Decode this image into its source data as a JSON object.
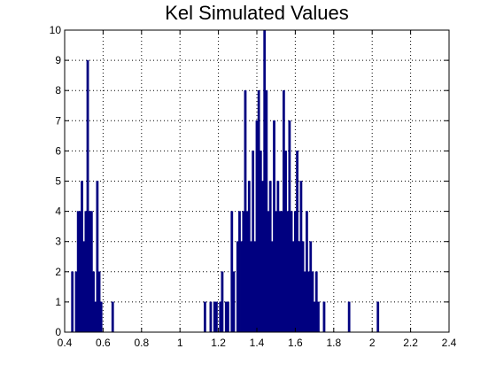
{
  "chart_data": {
    "type": "bar",
    "title": "Kel Simulated Values",
    "xlabel": "",
    "ylabel": "",
    "xlim": [
      0.4,
      2.4
    ],
    "ylim": [
      0,
      10
    ],
    "xticks": [
      0.4,
      0.6,
      0.8,
      1,
      1.2,
      1.4,
      1.6,
      1.8,
      2,
      2.2,
      2.4
    ],
    "xtick_labels": [
      "0.4",
      "0.6",
      "0.8",
      "1",
      "1.2",
      "1.4",
      "1.6",
      "1.8",
      "2",
      "2.2",
      "2.4"
    ],
    "yticks": [
      0,
      1,
      2,
      3,
      4,
      5,
      6,
      7,
      8,
      9,
      10
    ],
    "ytick_labels": [
      "0",
      "1",
      "2",
      "3",
      "4",
      "5",
      "6",
      "7",
      "8",
      "9",
      "10"
    ],
    "grid": true,
    "bar_color": "#000080",
    "bin_width": 0.01,
    "bins": [
      [
        0.44,
        2
      ],
      [
        0.46,
        2
      ],
      [
        0.47,
        4
      ],
      [
        0.48,
        4
      ],
      [
        0.49,
        5
      ],
      [
        0.5,
        3
      ],
      [
        0.51,
        4
      ],
      [
        0.52,
        9
      ],
      [
        0.53,
        4
      ],
      [
        0.54,
        4
      ],
      [
        0.55,
        2
      ],
      [
        0.56,
        1
      ],
      [
        0.57,
        5
      ],
      [
        0.58,
        2
      ],
      [
        0.59,
        1
      ],
      [
        0.65,
        1
      ],
      [
        1.13,
        1
      ],
      [
        1.16,
        1
      ],
      [
        1.18,
        1
      ],
      [
        1.19,
        1
      ],
      [
        1.21,
        1
      ],
      [
        1.22,
        2
      ],
      [
        1.24,
        1
      ],
      [
        1.25,
        1
      ],
      [
        1.27,
        4
      ],
      [
        1.28,
        2
      ],
      [
        1.3,
        3
      ],
      [
        1.31,
        4
      ],
      [
        1.32,
        3
      ],
      [
        1.33,
        4
      ],
      [
        1.34,
        8
      ],
      [
        1.35,
        4
      ],
      [
        1.36,
        5
      ],
      [
        1.37,
        3
      ],
      [
        1.38,
        6
      ],
      [
        1.39,
        3
      ],
      [
        1.4,
        7
      ],
      [
        1.41,
        8
      ],
      [
        1.42,
        6
      ],
      [
        1.43,
        5
      ],
      [
        1.44,
        10
      ],
      [
        1.45,
        8
      ],
      [
        1.46,
        4
      ],
      [
        1.47,
        5
      ],
      [
        1.48,
        3
      ],
      [
        1.49,
        7
      ],
      [
        1.5,
        4
      ],
      [
        1.51,
        5
      ],
      [
        1.52,
        4
      ],
      [
        1.53,
        4
      ],
      [
        1.54,
        8
      ],
      [
        1.55,
        6
      ],
      [
        1.56,
        4
      ],
      [
        1.57,
        7
      ],
      [
        1.58,
        4
      ],
      [
        1.59,
        3
      ],
      [
        1.6,
        4
      ],
      [
        1.61,
        6
      ],
      [
        1.62,
        3
      ],
      [
        1.63,
        5
      ],
      [
        1.64,
        3
      ],
      [
        1.65,
        2
      ],
      [
        1.66,
        4
      ],
      [
        1.67,
        2
      ],
      [
        1.68,
        3
      ],
      [
        1.69,
        2
      ],
      [
        1.7,
        1
      ],
      [
        1.71,
        2
      ],
      [
        1.72,
        1
      ],
      [
        1.75,
        1
      ],
      [
        1.88,
        1
      ],
      [
        2.03,
        1
      ]
    ]
  }
}
